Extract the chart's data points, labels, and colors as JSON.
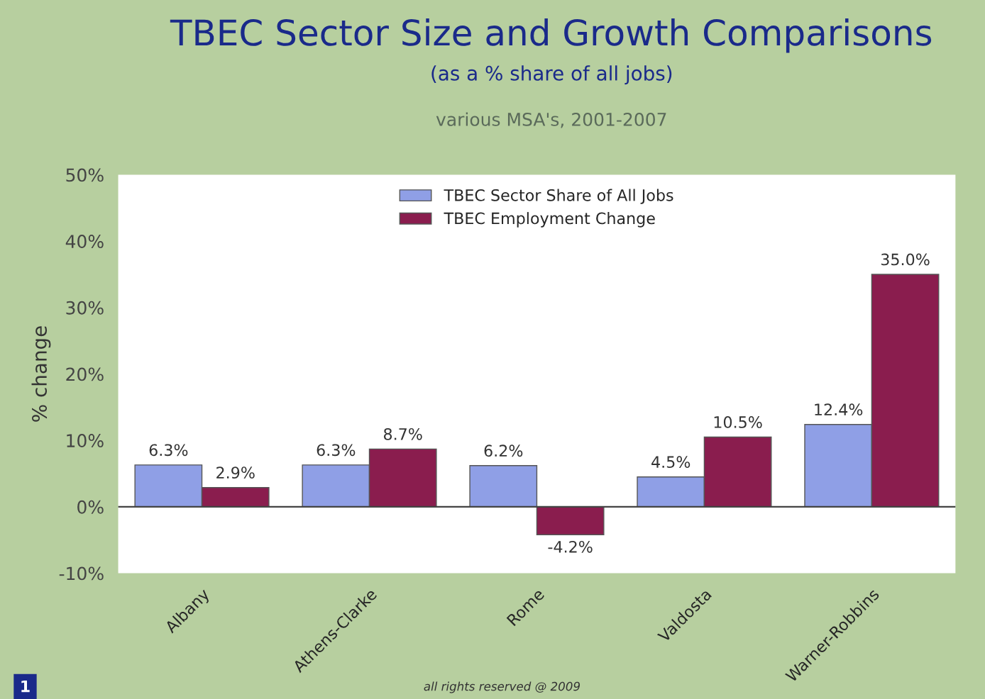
{
  "chart_data": {
    "type": "bar",
    "title": "TBEC Sector Size and Growth Comparisons",
    "subtitle": "(as a % share of all jobs)\nvarious MSA's, 2001-2007",
    "ylabel": "% change",
    "categories": [
      "Albany",
      "Athens-Clarke",
      "Rome",
      "Valdosta",
      "Warner-Robbins"
    ],
    "series": [
      {
        "name": "TBEC Sector Share of All Jobs",
        "color": "#8f9fe6",
        "values": [
          6.3,
          6.3,
          6.2,
          4.5,
          12.4
        ],
        "value_labels": [
          "6.3%",
          "6.3%",
          "6.2%",
          "4.5%",
          "12.4%"
        ]
      },
      {
        "name": "TBEC Employment Change",
        "color": "#8a1d4e",
        "values": [
          2.9,
          8.7,
          -4.2,
          10.5,
          35.0
        ],
        "value_labels": [
          "2.9%",
          "8.7%",
          "-4.2%",
          "10.5%",
          "35.0%"
        ]
      }
    ],
    "ylim": [
      -10,
      50
    ],
    "yticks": [
      {
        "value": -10,
        "label": "-10%"
      },
      {
        "value": 0,
        "label": "0%"
      },
      {
        "value": 10,
        "label": "10%"
      },
      {
        "value": 20,
        "label": "20%"
      },
      {
        "value": 30,
        "label": "30%"
      },
      {
        "value": 40,
        "label": "40%"
      },
      {
        "value": 50,
        "label": "50%"
      }
    ],
    "legend": "top",
    "annotations": [
      "1",
      "all rights reserved @ 2009"
    ]
  }
}
